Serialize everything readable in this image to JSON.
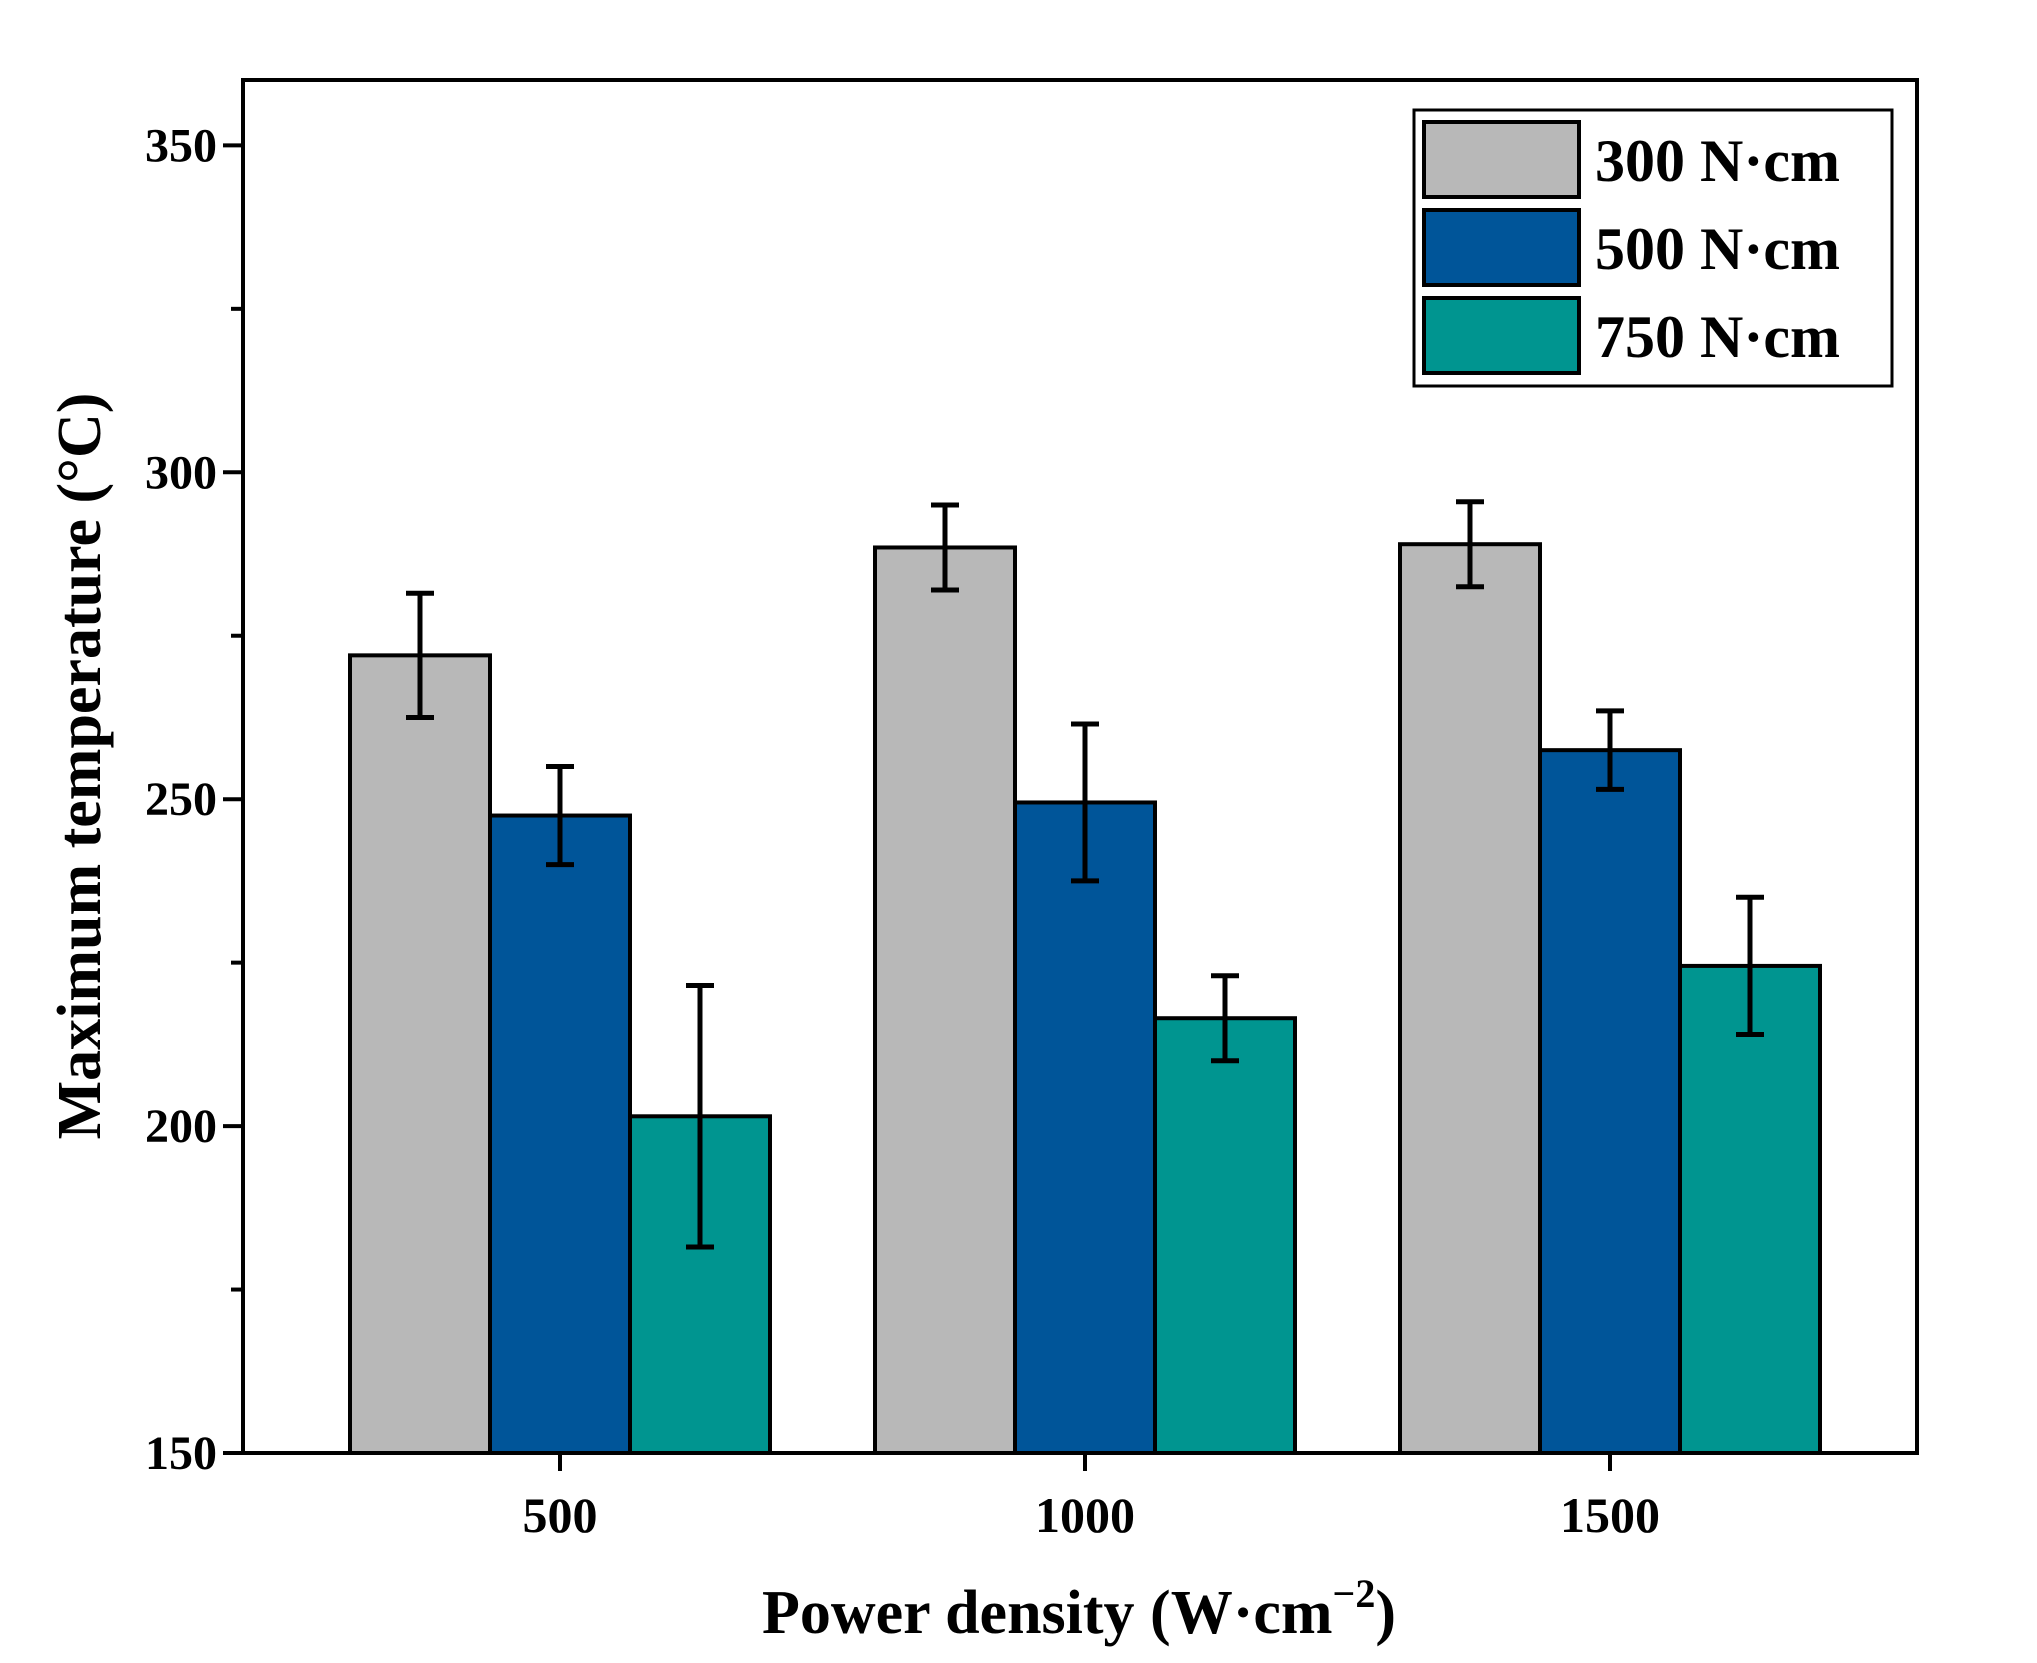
{
  "chart_data": {
    "type": "bar",
    "title": "",
    "xlabel": "Power density (W·cm",
    "xlabel_sup": "−2",
    "xlabel_close": ")",
    "ylabel": "Maximum temperature (°C)",
    "ylim": [
      150,
      360
    ],
    "yticks": [
      150,
      200,
      250,
      300,
      350
    ],
    "yticks_minor": [
      175,
      225,
      275,
      325
    ],
    "categories": [
      "500",
      "1000",
      "1500"
    ],
    "series": [
      {
        "name": "300 N·cm",
        "color": "#b8b8b8",
        "values": [
          272,
          288.5,
          289
        ],
        "errors": [
          9.5,
          6.5,
          6.5
        ]
      },
      {
        "name": "500 N·cm",
        "color": "#005599",
        "values": [
          247.5,
          249.5,
          257.5
        ],
        "errors": [
          7.5,
          12,
          6
        ]
      },
      {
        "name": "750 N·cm",
        "color": "#009590",
        "values": [
          201.5,
          216.5,
          224.5
        ],
        "errors": [
          20,
          6.5,
          10.5
        ]
      }
    ],
    "legend_position": "top-right",
    "grid": false
  }
}
